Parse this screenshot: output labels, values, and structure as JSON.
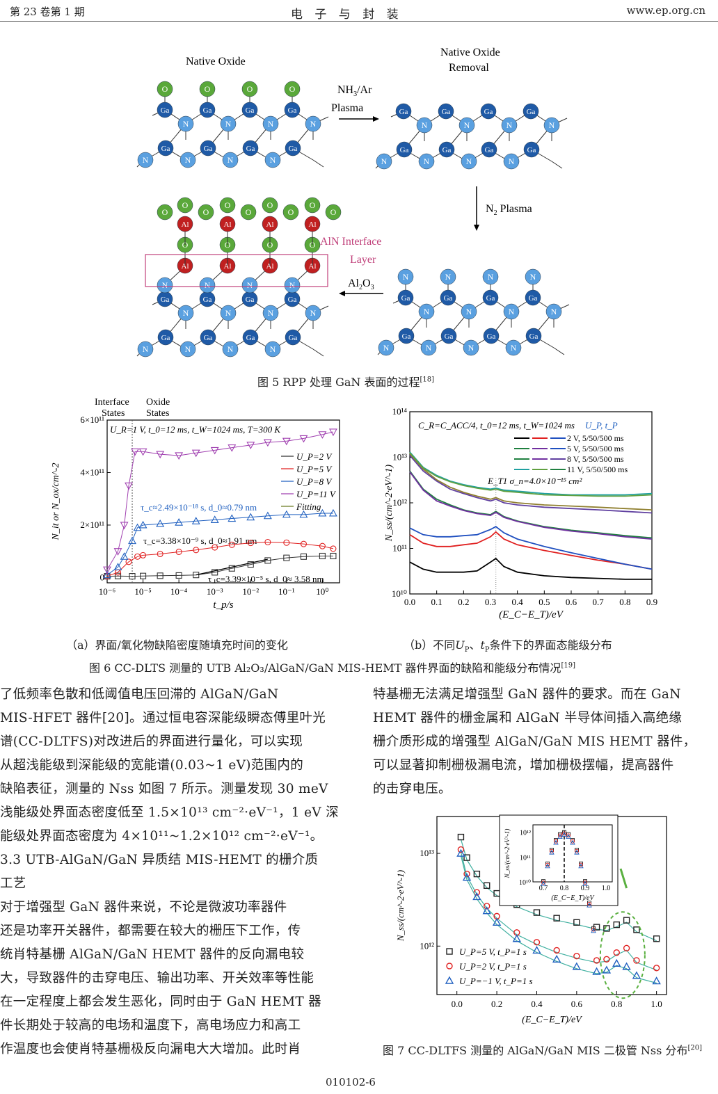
{
  "header": {
    "left": "第 23 卷第 1 期",
    "center": "电  子  与  封  装",
    "right": "www.ep.org.cn"
  },
  "fig5": {
    "labels": {
      "native_oxide": "Native Oxide",
      "removal_1": "Native Oxide",
      "removal_2": "Removal",
      "nh3": "NH",
      "nh3_sub": "3",
      "nh3_rest": "/Ar",
      "plasma": "Plasma",
      "n2": "N",
      "n2_sub": "2",
      "n2_rest": "Plasma",
      "aln_1": "AlN Interface",
      "aln_2": "Layer",
      "al2o3": "Al",
      "al2o3_sub1": "2",
      "al2o3_o": "O",
      "al2o3_sub2": "3"
    },
    "atoms": {
      "ga": "Ga",
      "n": "N",
      "o": "O",
      "al": "Al"
    },
    "caption": "图 5  RPP 处理 GaN 表面的过程",
    "caption_ref": "[18]"
  },
  "fig6": {
    "sub_a": "（a）界面/氧化物缺陷密度随填充时间的变化",
    "sub_b_1": "（b）不同",
    "sub_b_up": "U",
    "sub_b_up_sub": "P",
    "sub_b_sep": "、",
    "sub_b_tp": "t",
    "sub_b_tp_sub": "P",
    "sub_b_2": "条件下的界面态能级分布",
    "caption": "图 6  CC-DLTS 测量的 UTB Al₂O₃/AlGaN/GaN MIS-HEMT 器件界面的缺陷和能级分布情况",
    "caption_ref": "[19]"
  },
  "chart_data": [
    {
      "type": "scatter",
      "title": "",
      "xlabel": "t_p/s",
      "ylabel": "N_it or N_ox/cm^-2",
      "xscale": "log",
      "xlim": [
        1e-06,
        3
      ],
      "ylim": [
        -20000000000.0,
        600000000000.0
      ],
      "xticks": [
        "10⁻⁶",
        "10⁻⁵",
        "10⁻⁴",
        "10⁻³",
        "10⁻²",
        "10⁻¹",
        "10⁰"
      ],
      "yticks": [
        "0",
        "2×10¹¹",
        "4×10¹¹",
        "6×10¹¹"
      ],
      "top_labels": [
        "Interface States",
        "Oxide States"
      ],
      "condition": "U_R=1 V, t_0=12 ms, t_W=1024 ms, T=300 K",
      "annotations": [
        "τ_c≈2.49×10⁻¹⁸ s, d_0≈0.79 nm",
        "τ_c=3.38×10⁻⁹ s, d_0≈1.91 nm",
        "τ_c=3.39×10⁻⁵ s, d_0≈ 3.58 nm"
      ],
      "legend": [
        "U_P=2 V",
        "U_P=5 V",
        "U_P=8 V",
        "U_P=11 V",
        "Fitting"
      ],
      "series": [
        {
          "name": "U_P=2 V",
          "color": "#333333",
          "marker": "square",
          "x": [
            1e-06,
            2e-06,
            5e-06,
            1e-05,
            3e-05,
            0.0001,
            0.0003,
            0.001,
            0.003,
            0.01,
            0.03,
            0.1,
            0.3,
            1,
            2
          ],
          "y": [
            5000000000.0,
            6000000000.0,
            5000000000.0,
            6000000000.0,
            7000000000.0,
            8000000000.0,
            10000000000.0,
            20000000000.0,
            35000000000.0,
            50000000000.0,
            65000000000.0,
            75000000000.0,
            80000000000.0,
            82000000000.0,
            82000000000.0
          ]
        },
        {
          "name": "U_P=5 V",
          "color": "#e02020",
          "marker": "circle",
          "x": [
            1e-06,
            2e-06,
            4e-06,
            7e-06,
            1e-05,
            3e-05,
            0.0001,
            0.0003,
            0.001,
            0.003,
            0.01,
            0.03,
            0.1,
            0.3,
            1,
            2
          ],
          "y": [
            5000000000.0,
            20000000000.0,
            60000000000.0,
            80000000000.0,
            85000000000.0,
            90000000000.0,
            98000000000.0,
            105000000000.0,
            115000000000.0,
            125000000000.0,
            132000000000.0,
            135000000000.0,
            133000000000.0,
            128000000000.0,
            120000000000.0,
            110000000000.0
          ]
        },
        {
          "name": "U_P=8 V",
          "color": "#2060c0",
          "marker": "triangle",
          "x": [
            1e-06,
            2e-06,
            3e-06,
            5e-06,
            7e-06,
            1e-05,
            3e-05,
            0.0001,
            0.0003,
            0.001,
            0.003,
            0.01,
            0.03,
            0.1,
            0.3,
            1,
            2
          ],
          "y": [
            10000000000.0,
            40000000000.0,
            80000000000.0,
            140000000000.0,
            190000000000.0,
            200000000000.0,
            205000000000.0,
            210000000000.0,
            215000000000.0,
            220000000000.0,
            225000000000.0,
            230000000000.0,
            235000000000.0,
            240000000000.0,
            240000000000.0,
            245000000000.0,
            245000000000.0
          ]
        },
        {
          "name": "U_P=11 V",
          "color": "#a040b0",
          "marker": "triangle-down",
          "x": [
            1e-06,
            2e-06,
            3e-06,
            4e-06,
            6e-06,
            1e-05,
            3e-05,
            0.0001,
            0.0003,
            0.001,
            0.003,
            0.01,
            0.03,
            0.1,
            0.3,
            1,
            2
          ],
          "y": [
            30000000000.0,
            100000000000.0,
            200000000000.0,
            350000000000.0,
            480000000000.0,
            480000000000.0,
            470000000000.0,
            465000000000.0,
            475000000000.0,
            485000000000.0,
            495000000000.0,
            505000000000.0,
            515000000000.0,
            520000000000.0,
            530000000000.0,
            545000000000.0,
            555000000000.0
          ]
        }
      ]
    },
    {
      "type": "line",
      "title": "",
      "xlabel": "(E_C−E_T)/eV",
      "ylabel": "N_ss/(cm^-2·eV^-1)",
      "yscale": "log",
      "xlim": [
        0,
        0.9
      ],
      "ylim": [
        10000000000.0,
        100000000000000.0
      ],
      "xticks": [
        "0.0",
        "0.1",
        "0.2",
        "0.3",
        "0.4",
        "0.5",
        "0.6",
        "0.7",
        "0.8",
        "0.9"
      ],
      "yticks": [
        "10¹⁰",
        "10¹¹",
        "10¹²",
        "10¹³",
        "10¹⁴"
      ],
      "condition": "C_R=C_ACC/4, t_0=12 ms, t_W=1024 ms",
      "legend_header": "U_P,  t_P",
      "legend": [
        "2 V, 5/50/500 ms",
        "5 V, 5/50/500 ms",
        "8 V, 5/50/500 ms",
        "11 V, 5/50/500 ms"
      ],
      "annotation": "E_T1 σ_n=4.0×10⁻¹⁵ cm²",
      "x": [
        0.0,
        0.05,
        0.1,
        0.15,
        0.2,
        0.25,
        0.3,
        0.32,
        0.35,
        0.4,
        0.5,
        0.6,
        0.7,
        0.8,
        0.9
      ],
      "series": [
        {
          "name": "2 V",
          "color": "#000000",
          "values": [
            50000000000.0,
            35000000000.0,
            30000000000.0,
            30000000000.0,
            30000000000.0,
            32000000000.0,
            50000000000.0,
            60000000000.0,
            40000000000.0,
            30000000000.0,
            25000000000.0,
            23000000000.0,
            22000000000.0,
            21000000000.0,
            21000000000.0
          ]
        },
        {
          "name": "2 V",
          "color": "#e02020",
          "values": [
            200000000000.0,
            130000000000.0,
            110000000000.0,
            110000000000.0,
            120000000000.0,
            130000000000.0,
            180000000000.0,
            230000000000.0,
            160000000000.0,
            120000000000.0,
            90000000000.0,
            70000000000.0,
            55000000000.0,
            45000000000.0,
            35000000000.0
          ]
        },
        {
          "name": "2 V",
          "color": "#2050c0",
          "values": [
            280000000000.0,
            200000000000.0,
            180000000000.0,
            180000000000.0,
            190000000000.0,
            200000000000.0,
            260000000000.0,
            300000000000.0,
            220000000000.0,
            160000000000.0,
            110000000000.0,
            80000000000.0,
            60000000000.0,
            45000000000.0,
            35000000000.0
          ]
        },
        {
          "name": "5 V",
          "color": "#208040",
          "values": [
            5000000000000.0,
            2000000000000.0,
            1200000000000.0,
            900000000000.0,
            700000000000.0,
            600000000000.0,
            550000000000.0,
            650000000000.0,
            500000000000.0,
            400000000000.0,
            300000000000.0,
            250000000000.0,
            220000000000.0,
            190000000000.0,
            170000000000.0
          ]
        },
        {
          "name": "5 V",
          "color": "#7030a0",
          "values": [
            4800000000000.0,
            1900000000000.0,
            1100000000000.0,
            850000000000.0,
            680000000000.0,
            580000000000.0,
            530000000000.0,
            620000000000.0,
            480000000000.0,
            390000000000.0,
            290000000000.0,
            240000000000.0,
            210000000000.0,
            180000000000.0,
            160000000000.0
          ]
        },
        {
          "name": "8 V",
          "color": "#6040a0",
          "values": [
            11000000000000.0,
            5000000000000.0,
            3000000000000.0,
            2000000000000.0,
            1600000000000.0,
            1300000000000.0,
            1100000000000.0,
            1200000000000.0,
            1000000000000.0,
            900000000000.0,
            800000000000.0,
            750000000000.0,
            700000000000.0,
            650000000000.0,
            600000000000.0
          ]
        },
        {
          "name": "8 V",
          "color": "#908030",
          "values": [
            12000000000000.0,
            5500000000000.0,
            3200000000000.0,
            2200000000000.0,
            1700000000000.0,
            1400000000000.0,
            1200000000000.0,
            1300000000000.0,
            1100000000000.0,
            1000000000000.0,
            900000000000.0,
            850000000000.0,
            800000000000.0,
            750000000000.0,
            700000000000.0
          ]
        },
        {
          "name": "11 V",
          "color": "#20a0a0",
          "values": [
            13000000000000.0,
            6000000000000.0,
            4000000000000.0,
            3000000000000.0,
            2500000000000.0,
            2200000000000.0,
            2000000000000.0,
            2100000000000.0,
            1900000000000.0,
            1800000000000.0,
            1600000000000.0,
            1500000000000.0,
            1500000000000.0,
            1500000000000.0,
            1600000000000.0
          ]
        },
        {
          "name": "11 V",
          "color": "#60a040",
          "values": [
            12500000000000.0,
            5800000000000.0,
            3800000000000.0,
            2900000000000.0,
            2400000000000.0,
            2100000000000.0,
            1900000000000.0,
            2000000000000.0,
            1800000000000.0,
            1700000000000.0,
            1500000000000.0,
            1450000000000.0,
            1400000000000.0,
            1400000000000.0,
            1500000000000.0
          ]
        }
      ]
    },
    {
      "type": "scatter",
      "title": "",
      "xlabel": "(E_C−E_T)/eV",
      "ylabel": "N_ss/(cm^-2·eV^-1)",
      "yscale": "log",
      "xlim": [
        -0.1,
        1.05
      ],
      "ylim": [
        300000000000.0,
        25000000000000.0
      ],
      "xticks": [
        "0.0",
        "0.2",
        "0.4",
        "0.6",
        "0.8",
        "1.0"
      ],
      "yticks": [
        "10¹²",
        "10¹³"
      ],
      "legend": [
        "U_P=5 V, t_P=1 s",
        "U_P=2 V, t_P=1 s",
        "U_P=−1 V, t_P=1 s"
      ],
      "inset": {
        "xlabel": "(E_C−E_T)/eV",
        "ylabel": "N_ss/(cm^-2·eV^-1)",
        "xticks": [
          "0.7",
          "0.8",
          "0.9",
          "1.0"
        ],
        "yticks": [
          "10¹⁰",
          "10¹¹",
          "10¹²"
        ],
        "peak_x": 0.8
      },
      "x": [
        0.02,
        0.05,
        0.1,
        0.15,
        0.2,
        0.3,
        0.4,
        0.5,
        0.6,
        0.7,
        0.75,
        0.8,
        0.85,
        0.9,
        1.0
      ],
      "series": [
        {
          "name": "U_P=5 V, t_P=1 s",
          "color": "#222222",
          "marker": "square",
          "values": [
            15000000000000.0,
            9000000000000.0,
            6000000000000.0,
            4500000000000.0,
            3700000000000.0,
            2800000000000.0,
            2300000000000.0,
            2000000000000.0,
            1800000000000.0,
            1600000000000.0,
            1550000000000.0,
            1700000000000.0,
            1900000000000.0,
            1500000000000.0,
            1200000000000.0
          ]
        },
        {
          "name": "U_P=2 V, t_P=1 s",
          "color": "#e02020",
          "marker": "circle",
          "values": [
            11000000000000.0,
            6000000000000.0,
            3800000000000.0,
            2700000000000.0,
            2100000000000.0,
            1400000000000.0,
            1100000000000.0,
            900000000000.0,
            780000000000.0,
            700000000000.0,
            720000000000.0,
            850000000000.0,
            950000000000.0,
            700000000000.0,
            580000000000.0
          ]
        },
        {
          "name": "U_P=−1 V, t_P=1 s",
          "color": "#2060c0",
          "marker": "triangle",
          "values": [
            10000000000000.0,
            5500000000000.0,
            3400000000000.0,
            2400000000000.0,
            1800000000000.0,
            1200000000000.0,
            900000000000.0,
            720000000000.0,
            600000000000.0,
            530000000000.0,
            550000000000.0,
            650000000000.0,
            600000000000.0,
            480000000000.0,
            420000000000.0
          ]
        }
      ]
    }
  ],
  "text_left": [
    "了低频率色散和低阈值电压回滞的 AlGaN/GaN",
    "MIS-HFET 器件[20]。通过恒电容深能级瞬态傅里叶光",
    "谱(CC-DLTFS)对改进后的界面进行量化，可以实现",
    "从超浅能级到深能级的宽能谱(0.03~1 eV)范围内的",
    "缺陷表征，测量的 Nss 如图 7 所示。测量发现 30 meV",
    "浅能级处界面态密度低至 1.5×10¹³ cm⁻²·eV⁻¹，1 eV 深",
    "能级处界面态密度为 4×10¹¹~1.2×10¹² cm⁻²·eV⁻¹。",
    "3.3  UTB-AlGaN/GaN 异质结 MIS-HEMT 的栅介质",
    "工艺",
    "    对于增强型 GaN 器件来说，不论是微波功率器件",
    "还是功率开关器件，都需要在较大的栅压下工作，传",
    "统肖特基栅 AlGaN/GaN HEMT 器件的反向漏电较",
    "大，导致器件的击穿电压、输出功率、开关效率等性能",
    "在一定程度上都会发生恶化，同时由于 GaN HEMT 器",
    "件长期处于较高的电场和温度下，高电场应力和高工",
    "作温度也会使肖特基栅极反向漏电大大增加。此时肖"
  ],
  "text_right": [
    "特基栅无法满足增强型 GaN 器件的要求。而在 GaN",
    "HEMT 器件的栅金属和 AlGaN 半导体间插入高绝缘",
    "栅介质形成的增强型 AlGaN/GaN MIS HEMT 器件，",
    "可以显著抑制栅极漏电流，增加栅极摆幅，提高器件",
    "的击穿电压。"
  ],
  "fig7": {
    "caption": "图 7  CC-DLTFS 测量的 AlGaN/GaN MIS 二极管 Nss 分布",
    "caption_ref": "[20]"
  },
  "page_number": "010102-6"
}
